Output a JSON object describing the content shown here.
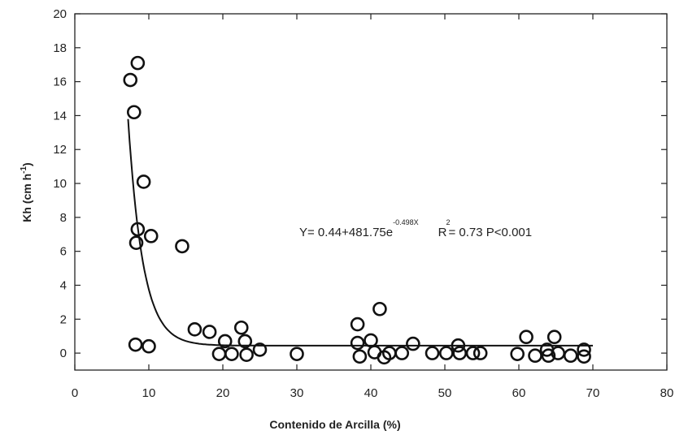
{
  "chart_data": {
    "type": "scatter",
    "xlabel": "Contenido de Arcilla (%)",
    "ylabel_main": "Kh (cm h",
    "ylabel_sup": "-1",
    "ylabel_close": ")",
    "xlim": [
      0,
      80
    ],
    "ylim": [
      -1,
      20
    ],
    "x_ticks": [
      0,
      10,
      20,
      30,
      40,
      50,
      60,
      70,
      80
    ],
    "y_ticks": [
      0,
      2,
      4,
      6,
      8,
      10,
      12,
      14,
      16,
      18,
      20
    ],
    "grid": false,
    "annotation": {
      "eq_main": "Y= 0.44+481.75e",
      "eq_exp": "-0.498X",
      "r_label": "R",
      "r_exp": "2",
      "r_rest": "= 0.73  P<0.001"
    },
    "points": [
      {
        "x": 7.5,
        "y": 16.1
      },
      {
        "x": 8.5,
        "y": 17.1
      },
      {
        "x": 8.0,
        "y": 14.2
      },
      {
        "x": 9.3,
        "y": 10.1
      },
      {
        "x": 8.5,
        "y": 7.3
      },
      {
        "x": 8.3,
        "y": 6.5
      },
      {
        "x": 10.3,
        "y": 6.9
      },
      {
        "x": 14.5,
        "y": 6.3
      },
      {
        "x": 8.2,
        "y": 0.5
      },
      {
        "x": 10.0,
        "y": 0.4
      },
      {
        "x": 16.2,
        "y": 1.4
      },
      {
        "x": 18.2,
        "y": 1.25
      },
      {
        "x": 19.5,
        "y": -0.05
      },
      {
        "x": 20.3,
        "y": 0.7
      },
      {
        "x": 21.2,
        "y": -0.05
      },
      {
        "x": 22.5,
        "y": 1.5
      },
      {
        "x": 23.0,
        "y": 0.7
      },
      {
        "x": 23.2,
        "y": -0.1
      },
      {
        "x": 25.0,
        "y": 0.2
      },
      {
        "x": 30.0,
        "y": -0.05
      },
      {
        "x": 38.2,
        "y": 1.7
      },
      {
        "x": 38.2,
        "y": 0.6
      },
      {
        "x": 38.5,
        "y": -0.2
      },
      {
        "x": 40.0,
        "y": 0.75
      },
      {
        "x": 40.5,
        "y": 0.05
      },
      {
        "x": 41.2,
        "y": 2.6
      },
      {
        "x": 41.8,
        "y": -0.25
      },
      {
        "x": 42.5,
        "y": 0.0
      },
      {
        "x": 44.2,
        "y": 0.0
      },
      {
        "x": 45.7,
        "y": 0.55
      },
      {
        "x": 48.3,
        "y": 0.0
      },
      {
        "x": 50.2,
        "y": 0.0
      },
      {
        "x": 51.8,
        "y": 0.45
      },
      {
        "x": 52.0,
        "y": 0.0
      },
      {
        "x": 53.8,
        "y": 0.0
      },
      {
        "x": 54.8,
        "y": 0.0
      },
      {
        "x": 59.8,
        "y": -0.05
      },
      {
        "x": 61.0,
        "y": 0.95
      },
      {
        "x": 62.2,
        "y": -0.15
      },
      {
        "x": 63.8,
        "y": 0.2
      },
      {
        "x": 64.0,
        "y": -0.15
      },
      {
        "x": 64.8,
        "y": 0.95
      },
      {
        "x": 65.3,
        "y": 0.0
      },
      {
        "x": 67.0,
        "y": -0.15
      },
      {
        "x": 68.8,
        "y": 0.2
      },
      {
        "x": 68.8,
        "y": -0.2
      }
    ],
    "fit": {
      "a": 0.44,
      "b": 481.75,
      "k": -0.498
    }
  }
}
